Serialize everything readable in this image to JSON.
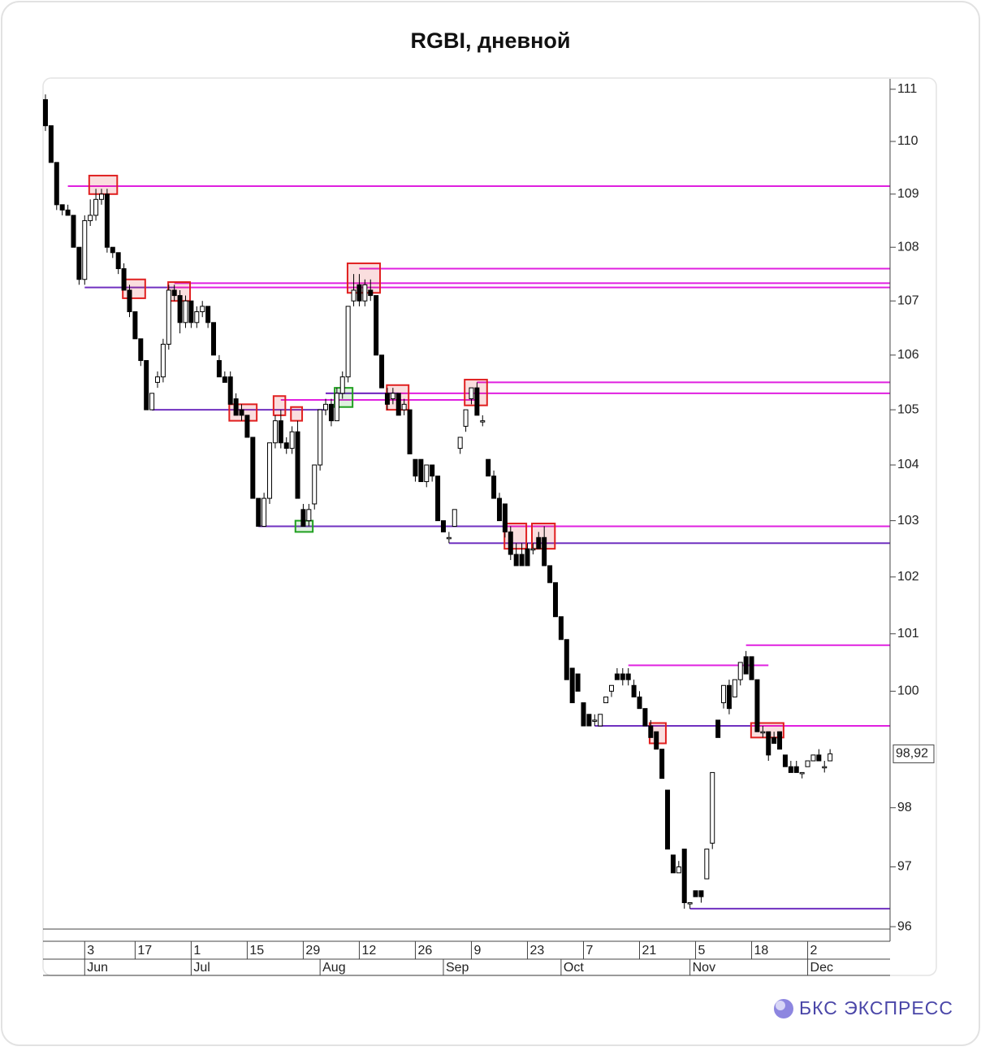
{
  "chart_data": {
    "type": "candlestick",
    "title": "RGBI, дневной",
    "log_scale": true,
    "up_color": "#ffffff",
    "down_color": "#000000",
    "ylim": [
      95.96,
      111.2
    ],
    "yticks": [
      96,
      97,
      98,
      100,
      101,
      102,
      103,
      104,
      105,
      106,
      107,
      108,
      109,
      110,
      111
    ],
    "xlim": [
      -0.43,
      150.7
    ],
    "xticks": [
      {
        "value": 7,
        "label": "3"
      },
      {
        "value": 16,
        "label": "17"
      },
      {
        "value": 26,
        "label": "1"
      },
      {
        "value": 36,
        "label": "15"
      },
      {
        "value": 46,
        "label": "29"
      },
      {
        "value": 56,
        "label": "12"
      },
      {
        "value": 66,
        "label": "26"
      },
      {
        "value": 76,
        "label": "9"
      },
      {
        "value": 86,
        "label": "23"
      },
      {
        "value": 96,
        "label": "7"
      },
      {
        "value": 106,
        "label": "21"
      },
      {
        "value": 116,
        "label": "5"
      },
      {
        "value": 126,
        "label": "18"
      },
      {
        "value": 136,
        "label": "2"
      }
    ],
    "month_ticks": [
      {
        "value": 7,
        "label": "Jun"
      },
      {
        "value": 26,
        "label": "Jul"
      },
      {
        "value": 49,
        "label": "Aug"
      },
      {
        "value": 71,
        "label": "Sep"
      },
      {
        "value": 92,
        "label": "Oct"
      },
      {
        "value": 115,
        "label": "Nov"
      },
      {
        "value": 136,
        "label": "Dec"
      }
    ],
    "last_price": {
      "value": 98.92,
      "label": "98,92"
    },
    "ohlc": [
      [
        110.8,
        110.9,
        110.2,
        110.3
      ],
      [
        110.3,
        110.3,
        109.6,
        109.6
      ],
      [
        109.6,
        109.6,
        108.7,
        108.8
      ],
      [
        108.8,
        108.8,
        108.6,
        108.7
      ],
      [
        108.7,
        108.8,
        108.6,
        108.6
      ],
      [
        108.6,
        108.6,
        108.0,
        108.0
      ],
      [
        108.0,
        108.0,
        107.3,
        107.4
      ],
      [
        107.4,
        108.6,
        107.3,
        108.5
      ],
      [
        108.5,
        108.9,
        108.4,
        108.6
      ],
      [
        108.6,
        109.1,
        108.5,
        108.9
      ],
      [
        108.9,
        109.1,
        108.8,
        109.0
      ],
      [
        109.0,
        109.1,
        107.9,
        108.0
      ],
      [
        108.0,
        108.0,
        107.8,
        107.9
      ],
      [
        107.9,
        107.9,
        107.5,
        107.6
      ],
      [
        107.6,
        107.7,
        107.2,
        107.2
      ],
      [
        107.2,
        107.3,
        106.7,
        106.8
      ],
      [
        106.8,
        106.8,
        106.3,
        106.3
      ],
      [
        106.3,
        106.3,
        105.8,
        105.9
      ],
      [
        105.9,
        105.9,
        105.0,
        105.0
      ],
      [
        105.0,
        105.3,
        105.0,
        105.3
      ],
      [
        105.5,
        105.7,
        105.4,
        105.6
      ],
      [
        105.6,
        106.3,
        105.5,
        106.2
      ],
      [
        106.2,
        107.3,
        106.1,
        107.2
      ],
      [
        107.2,
        107.3,
        107.0,
        107.1
      ],
      [
        107.1,
        107.2,
        106.4,
        106.6
      ],
      [
        106.6,
        107.1,
        106.5,
        107.0
      ],
      [
        107.0,
        107.0,
        106.5,
        106.6
      ],
      [
        106.6,
        106.9,
        106.5,
        106.8
      ],
      [
        106.8,
        107.0,
        106.7,
        106.9
      ],
      [
        106.9,
        106.9,
        106.5,
        106.6
      ],
      [
        106.6,
        106.6,
        106.0,
        106.0
      ],
      [
        105.9,
        106.0,
        105.6,
        105.6
      ],
      [
        105.6,
        105.7,
        105.5,
        105.5
      ],
      [
        105.6,
        105.7,
        105.1,
        105.1
      ],
      [
        105.2,
        105.3,
        104.9,
        104.9
      ],
      [
        105.0,
        105.1,
        104.8,
        104.9
      ],
      [
        104.9,
        104.9,
        104.5,
        104.5
      ],
      [
        104.5,
        104.5,
        103.4,
        103.4
      ],
      [
        103.4,
        103.4,
        102.9,
        102.9
      ],
      [
        102.9,
        103.5,
        102.9,
        103.4
      ],
      [
        103.4,
        104.4,
        103.3,
        104.4
      ],
      [
        104.4,
        104.9,
        104.3,
        104.8
      ],
      [
        104.8,
        105.0,
        104.3,
        104.4
      ],
      [
        104.4,
        104.5,
        104.2,
        104.3
      ],
      [
        104.3,
        104.7,
        104.2,
        104.6
      ],
      [
        104.6,
        104.8,
        103.4,
        103.4
      ],
      [
        103.2,
        103.3,
        102.9,
        102.9
      ],
      [
        103.0,
        103.3,
        102.9,
        103.2
      ],
      [
        103.3,
        104.0,
        103.2,
        104.0
      ],
      [
        104.0,
        105.0,
        103.9,
        105.0
      ],
      [
        105.0,
        105.2,
        104.9,
        105.1
      ],
      [
        105.1,
        105.2,
        104.7,
        104.8
      ],
      [
        104.8,
        105.4,
        104.8,
        105.3
      ],
      [
        105.3,
        105.7,
        105.2,
        105.6
      ],
      [
        105.6,
        106.9,
        105.5,
        106.9
      ],
      [
        107.0,
        107.5,
        106.9,
        107.2
      ],
      [
        107.3,
        107.5,
        106.9,
        107.0
      ],
      [
        107.0,
        107.4,
        106.9,
        107.3
      ],
      [
        107.2,
        107.4,
        107.0,
        107.1
      ],
      [
        107.1,
        107.1,
        106.0,
        106.0
      ],
      [
        106.0,
        106.0,
        105.4,
        105.4
      ],
      [
        105.3,
        105.4,
        105.0,
        105.1
      ],
      [
        105.2,
        105.4,
        105.1,
        105.3
      ],
      [
        105.3,
        105.3,
        104.9,
        104.9
      ],
      [
        105.0,
        105.2,
        104.9,
        105.1
      ],
      [
        105.0,
        105.0,
        104.2,
        104.2
      ],
      [
        104.1,
        104.1,
        103.7,
        103.8
      ],
      [
        104.1,
        104.1,
        103.7,
        103.7
      ],
      [
        103.7,
        104.0,
        103.6,
        104.0
      ],
      [
        104.0,
        104.0,
        103.7,
        103.8
      ],
      [
        103.8,
        103.8,
        103.0,
        103.0
      ],
      [
        103.0,
        103.0,
        102.8,
        102.8
      ],
      [
        102.7,
        102.8,
        102.6,
        102.7
      ],
      [
        102.9,
        103.2,
        102.9,
        103.2
      ],
      [
        104.3,
        104.5,
        104.2,
        104.5
      ],
      [
        104.7,
        105.0,
        104.6,
        105.0
      ],
      [
        105.2,
        105.4,
        105.1,
        105.4
      ],
      [
        105.4,
        105.5,
        104.9,
        104.9
      ],
      [
        104.8,
        104.9,
        104.7,
        104.8
      ],
      [
        104.1,
        104.1,
        103.8,
        103.8
      ],
      [
        103.8,
        103.9,
        103.4,
        103.4
      ],
      [
        103.4,
        103.5,
        103.0,
        103.0
      ],
      [
        103.3,
        103.3,
        102.7,
        102.8
      ],
      [
        102.8,
        102.9,
        102.3,
        102.4
      ],
      [
        102.4,
        102.6,
        102.2,
        102.2
      ],
      [
        102.4,
        102.6,
        102.2,
        102.2
      ],
      [
        102.5,
        102.6,
        102.2,
        102.2
      ],
      [
        102.5,
        102.6,
        102.4,
        102.5
      ],
      [
        102.7,
        102.8,
        102.5,
        102.5
      ],
      [
        102.7,
        102.9,
        102.2,
        102.2
      ],
      [
        102.2,
        102.2,
        101.9,
        101.9
      ],
      [
        101.9,
        101.9,
        101.3,
        101.3
      ],
      [
        101.3,
        101.3,
        100.9,
        100.9
      ],
      [
        100.9,
        100.9,
        100.2,
        100.2
      ],
      [
        100.4,
        100.4,
        99.8,
        99.8
      ],
      [
        100.3,
        100.3,
        100.0,
        100.0
      ],
      [
        99.8,
        99.8,
        99.4,
        99.4
      ],
      [
        99.6,
        99.6,
        99.4,
        99.4
      ],
      [
        99.5,
        99.6,
        99.4,
        99.5
      ],
      [
        99.4,
        99.6,
        99.4,
        99.6
      ],
      [
        99.8,
        99.9,
        99.8,
        99.9
      ],
      [
        100.0,
        100.1,
        99.9,
        100.1
      ],
      [
        100.3,
        100.4,
        100.2,
        100.2
      ],
      [
        100.3,
        100.4,
        100.1,
        100.2
      ],
      [
        100.3,
        100.4,
        100.1,
        100.2
      ],
      [
        100.1,
        100.2,
        99.9,
        99.9
      ],
      [
        99.9,
        100.0,
        99.7,
        99.7
      ],
      [
        99.7,
        99.7,
        99.4,
        99.4
      ],
      [
        99.4,
        99.5,
        99.2,
        99.2
      ],
      [
        99.3,
        99.3,
        99.0,
        99.0
      ],
      [
        99.0,
        99.0,
        98.5,
        98.5
      ],
      [
        98.3,
        98.3,
        97.3,
        97.3
      ],
      [
        97.2,
        97.2,
        96.9,
        96.9
      ],
      [
        96.9,
        97.1,
        96.9,
        97.0
      ],
      [
        97.3,
        97.3,
        96.3,
        96.4
      ],
      [
        96.4,
        96.4,
        96.3,
        96.4
      ],
      [
        96.6,
        96.6,
        96.5,
        96.5
      ],
      [
        96.6,
        96.6,
        96.4,
        96.5
      ],
      [
        96.8,
        97.3,
        96.8,
        97.3
      ],
      [
        97.4,
        98.6,
        97.3,
        98.6
      ],
      [
        99.5,
        99.5,
        99.2,
        99.2
      ],
      [
        99.8,
        100.1,
        99.7,
        100.1
      ],
      [
        100.1,
        100.2,
        99.6,
        99.7
      ],
      [
        99.9,
        100.2,
        99.9,
        100.2
      ],
      [
        100.2,
        100.5,
        100.1,
        100.5
      ],
      [
        100.6,
        100.7,
        100.3,
        100.3
      ],
      [
        100.6,
        100.6,
        100.2,
        100.2
      ],
      [
        100.2,
        100.2,
        99.3,
        99.3
      ],
      [
        99.3,
        99.4,
        99.2,
        99.3
      ],
      [
        99.3,
        99.3,
        98.8,
        98.9
      ],
      [
        99.2,
        99.3,
        99.1,
        99.1
      ],
      [
        99.3,
        99.3,
        99.0,
        99.0
      ],
      [
        98.9,
        98.9,
        98.7,
        98.7
      ],
      [
        98.7,
        98.8,
        98.6,
        98.6
      ],
      [
        98.7,
        98.8,
        98.6,
        98.6
      ],
      [
        98.6,
        98.6,
        98.5,
        98.6
      ],
      [
        98.7,
        98.8,
        98.7,
        98.8
      ],
      [
        98.8,
        98.9,
        98.8,
        98.9
      ],
      [
        98.9,
        99.0,
        98.8,
        98.8
      ],
      [
        98.7,
        98.8,
        98.6,
        98.7
      ],
      [
        98.8,
        99.0,
        98.8,
        98.92
      ]
    ],
    "levels": [
      {
        "y": 109.15,
        "x0": 4,
        "x1": 150.7,
        "color": "#e020e0"
      },
      {
        "y": 107.6,
        "x0": 56,
        "x1": 150.7,
        "color": "#e020e0"
      },
      {
        "y": 107.33,
        "x0": 23,
        "x1": 150.7,
        "color": "#e020e0"
      },
      {
        "y": 107.25,
        "x0": 23,
        "x1": 150.7,
        "color": "#e020e0"
      },
      {
        "y": 107.25,
        "x0": 7,
        "x1": 23,
        "color": "#7030c0"
      },
      {
        "y": 105.5,
        "x0": 77,
        "x1": 150.7,
        "color": "#e020e0"
      },
      {
        "y": 105.3,
        "x0": 50,
        "x1": 150.7,
        "color": "#e020e0"
      },
      {
        "y": 105.3,
        "x0": 50,
        "x1": 63,
        "color": "#7030c0"
      },
      {
        "y": 105.18,
        "x0": 42,
        "x1": 77,
        "color": "#e020e0"
      },
      {
        "y": 105.0,
        "x0": 19,
        "x1": 50,
        "color": "#7030c0"
      },
      {
        "y": 102.9,
        "x0": 82,
        "x1": 150.7,
        "color": "#e020e0"
      },
      {
        "y": 102.9,
        "x0": 38,
        "x1": 82,
        "color": "#7030c0"
      },
      {
        "y": 102.6,
        "x0": 72,
        "x1": 150.7,
        "color": "#7030c0"
      },
      {
        "y": 100.8,
        "x0": 125,
        "x1": 150.7,
        "color": "#e020e0"
      },
      {
        "y": 100.45,
        "x0": 104,
        "x1": 129,
        "color": "#e020e0"
      },
      {
        "y": 99.4,
        "x0": 108,
        "x1": 150.7,
        "color": "#e020e0"
      },
      {
        "y": 99.4,
        "x0": 98,
        "x1": 126,
        "color": "#7030c0"
      },
      {
        "y": 96.3,
        "x0": 115,
        "x1": 150.7,
        "color": "#7030c0"
      }
    ],
    "boxes": [
      {
        "x0": 7.8,
        "x1": 12.8,
        "y0": 109.35,
        "y1": 109.0,
        "color": "#e02020"
      },
      {
        "x0": 13.8,
        "x1": 17.8,
        "y0": 107.4,
        "y1": 107.05,
        "color": "#e02020"
      },
      {
        "x0": 21.9,
        "x1": 25.8,
        "y0": 107.35,
        "y1": 107.0,
        "color": "#e02020"
      },
      {
        "x0": 32.8,
        "x1": 37.7,
        "y0": 105.1,
        "y1": 104.8,
        "color": "#e02020"
      },
      {
        "x0": 40.7,
        "x1": 42.8,
        "y0": 105.25,
        "y1": 104.9,
        "color": "#e02020"
      },
      {
        "x0": 43.8,
        "x1": 45.8,
        "y0": 105.05,
        "y1": 104.8,
        "color": "#e02020"
      },
      {
        "x0": 44.6,
        "x1": 47.7,
        "y0": 103.0,
        "y1": 102.8,
        "color": "#20a020"
      },
      {
        "x0": 51.6,
        "x1": 54.8,
        "y0": 105.4,
        "y1": 105.05,
        "color": "#20a020"
      },
      {
        "x0": 53.9,
        "x1": 59.7,
        "y0": 107.7,
        "y1": 107.15,
        "color": "#e02020"
      },
      {
        "x0": 60.9,
        "x1": 64.8,
        "y0": 105.45,
        "y1": 105.0,
        "color": "#e02020"
      },
      {
        "x0": 74.8,
        "x1": 78.8,
        "y0": 105.55,
        "y1": 105.08,
        "color": "#e02020"
      },
      {
        "x0": 81.9,
        "x1": 85.8,
        "y0": 102.95,
        "y1": 102.5,
        "color": "#e02020"
      },
      {
        "x0": 86.8,
        "x1": 90.9,
        "y0": 102.95,
        "y1": 102.5,
        "color": "#e02020"
      },
      {
        "x0": 107.8,
        "x1": 110.7,
        "y0": 99.45,
        "y1": 99.1,
        "color": "#e02020"
      },
      {
        "x0": 125.9,
        "x1": 131.7,
        "y0": 99.45,
        "y1": 99.2,
        "color": "#e02020"
      }
    ]
  },
  "brand": "БКС ЭКСПРЕСС"
}
